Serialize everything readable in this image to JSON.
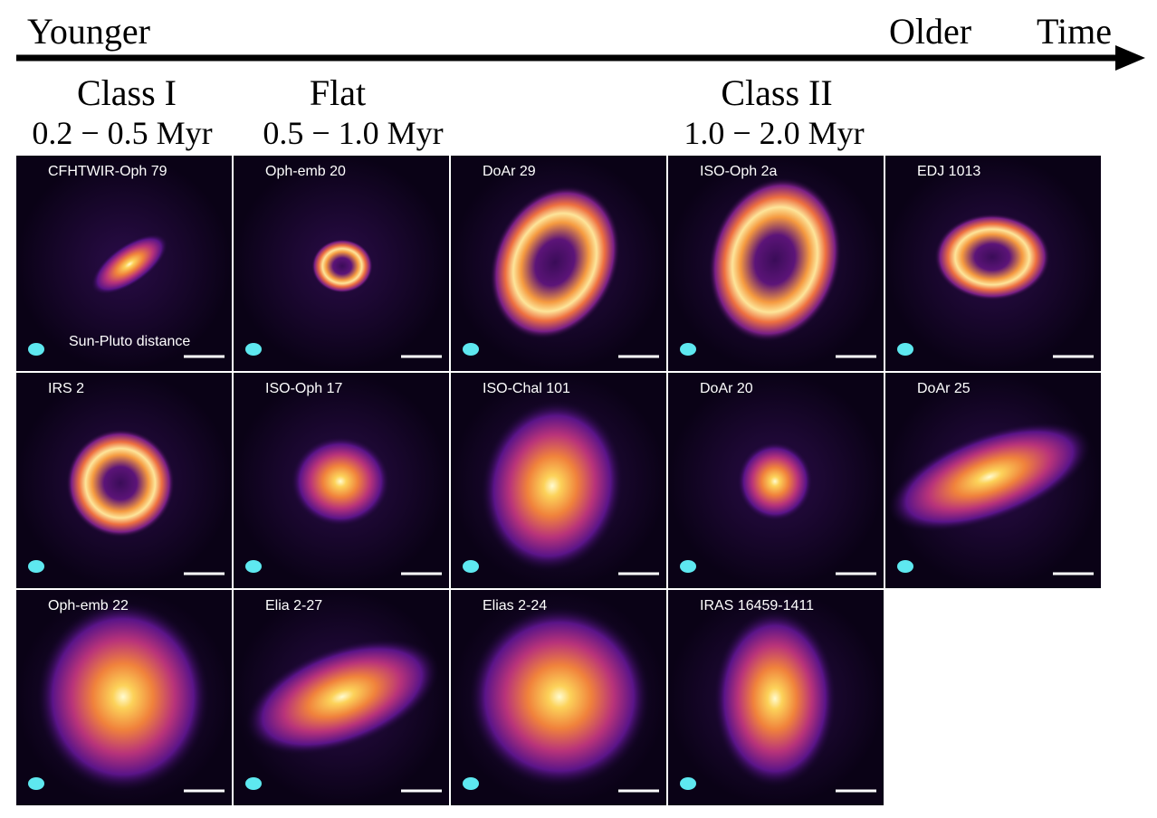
{
  "header": {
    "left": "Younger",
    "right": "Older",
    "end": "Time"
  },
  "classes": [
    {
      "name": "Class I",
      "age": "0.2 − 0.5 Myr"
    },
    {
      "name": "Flat",
      "age": "0.5 − 1.0 Myr"
    },
    {
      "name": "Class II",
      "age": "1.0 − 2.0 Myr"
    }
  ],
  "panels": [
    {
      "label": "CFHTWIR-Oph 79",
      "note": "Sun-Pluto distance"
    },
    {
      "label": "Oph-emb 20"
    },
    {
      "label": "DoAr 29"
    },
    {
      "label": "ISO-Oph 2a"
    },
    {
      "label": "EDJ 1013"
    },
    {
      "label": "IRS 2"
    },
    {
      "label": "ISO-Oph 17"
    },
    {
      "label": "ISO-Chal 101"
    },
    {
      "label": "DoAr 20"
    },
    {
      "label": "DoAr 25"
    },
    {
      "label": "Oph-emb 22"
    },
    {
      "label": "Elia 2-27"
    },
    {
      "label": "Elias 2-24"
    },
    {
      "label": "IRAS 16459-1411"
    }
  ]
}
